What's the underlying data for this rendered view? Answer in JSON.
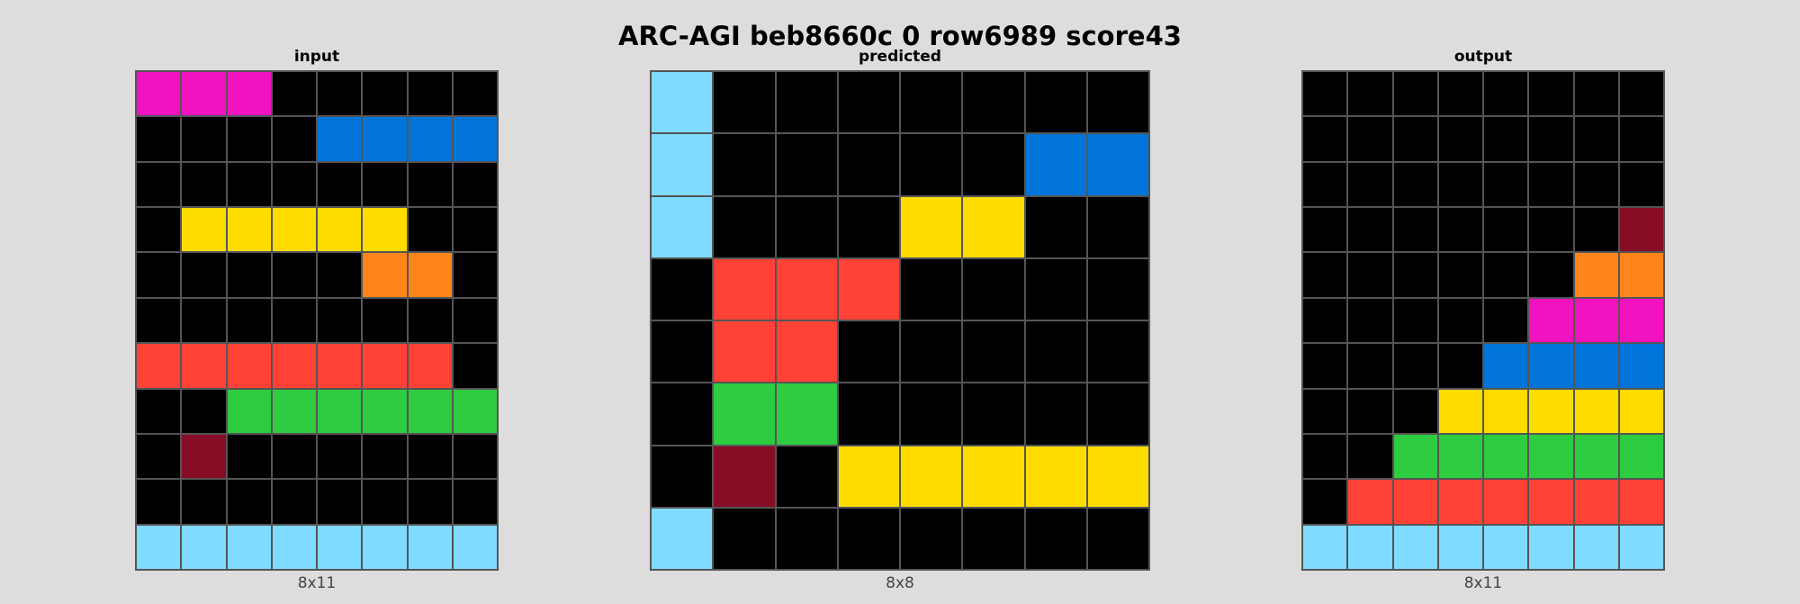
{
  "title": "ARC-AGI beb8660c 0 row6989 score43",
  "palette": {
    "0": "#000000",
    "1": "#0074d9",
    "2": "#ff4136",
    "3": "#2ecc40",
    "4": "#ffdc00",
    "6": "#f012be",
    "7": "#ff851b",
    "8": "#7fdbff",
    "9": "#870c25"
  },
  "panels": [
    {
      "label": "input",
      "caption": "8x11",
      "grid": [
        [
          6,
          6,
          6,
          0,
          0,
          0,
          0,
          0
        ],
        [
          0,
          0,
          0,
          0,
          1,
          1,
          1,
          1
        ],
        [
          0,
          0,
          0,
          0,
          0,
          0,
          0,
          0
        ],
        [
          0,
          4,
          4,
          4,
          4,
          4,
          0,
          0
        ],
        [
          0,
          0,
          0,
          0,
          0,
          7,
          7,
          0
        ],
        [
          0,
          0,
          0,
          0,
          0,
          0,
          0,
          0
        ],
        [
          2,
          2,
          2,
          2,
          2,
          2,
          2,
          0
        ],
        [
          0,
          0,
          3,
          3,
          3,
          3,
          3,
          3
        ],
        [
          0,
          9,
          0,
          0,
          0,
          0,
          0,
          0
        ],
        [
          0,
          0,
          0,
          0,
          0,
          0,
          0,
          0
        ],
        [
          8,
          8,
          8,
          8,
          8,
          8,
          8,
          8
        ]
      ]
    },
    {
      "label": "predicted",
      "caption": "8x8",
      "grid": [
        [
          8,
          0,
          0,
          0,
          0,
          0,
          0,
          0
        ],
        [
          8,
          0,
          0,
          0,
          0,
          0,
          1,
          1
        ],
        [
          8,
          0,
          0,
          0,
          4,
          4,
          0,
          0
        ],
        [
          0,
          2,
          2,
          2,
          0,
          0,
          0,
          0
        ],
        [
          0,
          2,
          2,
          0,
          0,
          0,
          0,
          0
        ],
        [
          0,
          3,
          3,
          0,
          0,
          0,
          0,
          0
        ],
        [
          0,
          9,
          0,
          4,
          4,
          4,
          4,
          4
        ],
        [
          8,
          0,
          0,
          0,
          0,
          0,
          0,
          0
        ]
      ]
    },
    {
      "label": "output",
      "caption": "8x11",
      "grid": [
        [
          0,
          0,
          0,
          0,
          0,
          0,
          0,
          0
        ],
        [
          0,
          0,
          0,
          0,
          0,
          0,
          0,
          0
        ],
        [
          0,
          0,
          0,
          0,
          0,
          0,
          0,
          0
        ],
        [
          0,
          0,
          0,
          0,
          0,
          0,
          0,
          9
        ],
        [
          0,
          0,
          0,
          0,
          0,
          0,
          7,
          7
        ],
        [
          0,
          0,
          0,
          0,
          0,
          6,
          6,
          6
        ],
        [
          0,
          0,
          0,
          0,
          1,
          1,
          1,
          1
        ],
        [
          0,
          0,
          0,
          4,
          4,
          4,
          4,
          4
        ],
        [
          0,
          0,
          3,
          3,
          3,
          3,
          3,
          3
        ],
        [
          0,
          2,
          2,
          2,
          2,
          2,
          2,
          2
        ],
        [
          8,
          8,
          8,
          8,
          8,
          8,
          8,
          8
        ]
      ]
    }
  ]
}
